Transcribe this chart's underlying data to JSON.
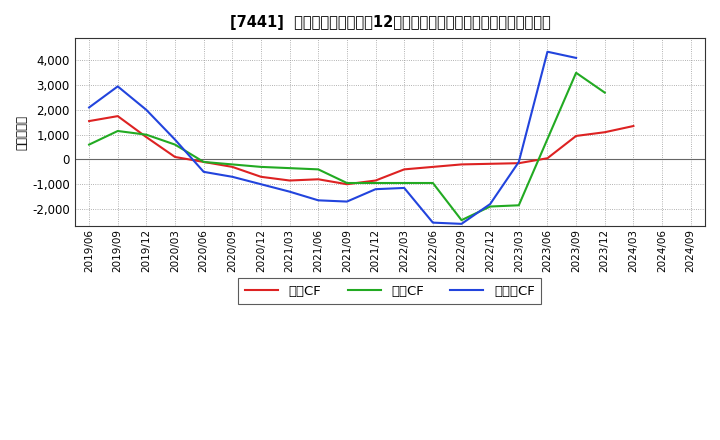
{
  "title": "[7441]  キャッシュフローの12か月移動合計の対前年同期増減額の推移",
  "ylabel": "（百万円）",
  "background_color": "#ffffff",
  "plot_bg_color": "#ffffff",
  "x_labels": [
    "2019/06",
    "2019/09",
    "2019/12",
    "2020/03",
    "2020/06",
    "2020/09",
    "2020/12",
    "2021/03",
    "2021/06",
    "2021/09",
    "2021/12",
    "2022/03",
    "2022/06",
    "2022/09",
    "2022/12",
    "2023/03",
    "2023/06",
    "2023/09",
    "2023/12",
    "2024/03",
    "2024/06",
    "2024/09"
  ],
  "eigyo_cf": [
    1550,
    1750,
    900,
    100,
    -100,
    -300,
    -700,
    -850,
    -800,
    -1000,
    -850,
    -400,
    -300,
    -200,
    -175,
    -150,
    50,
    950,
    1100,
    1350,
    null,
    null
  ],
  "toshi_cf": [
    600,
    1150,
    1000,
    600,
    -100,
    -200,
    -300,
    -350,
    -400,
    -950,
    -950,
    -950,
    -950,
    -2450,
    -1900,
    -1850,
    null,
    3500,
    2700,
    null,
    null,
    null
  ],
  "free_cf": [
    2100,
    2950,
    2000,
    800,
    -500,
    -700,
    -1000,
    -1300,
    -1650,
    -1700,
    -1200,
    -1150,
    -2550,
    -2600,
    -1800,
    -100,
    4350,
    4100,
    null,
    null,
    null,
    null
  ],
  "ylim": [
    -2700,
    4900
  ],
  "yticks": [
    -2000,
    -1000,
    0,
    1000,
    2000,
    3000,
    4000
  ],
  "line_colors": {
    "eigyo": "#dd2222",
    "toshi": "#22aa22",
    "free": "#2244dd"
  },
  "legend_labels": [
    "営業CF",
    "投資CF",
    "フリーCF"
  ]
}
